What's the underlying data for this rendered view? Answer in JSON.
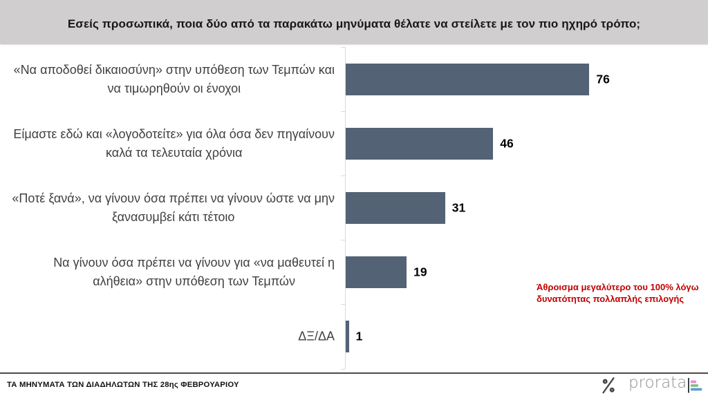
{
  "header": {
    "title": "Εσείς προσωπικά, ποια δύο από τα παρακάτω μηνύματα θέλατε να στείλετε με τον πιο ηχηρό τρόπο;"
  },
  "chart_data": {
    "type": "bar",
    "orientation": "horizontal",
    "title": "Εσείς προσωπικά, ποια δύο από τα παρακάτω μηνύματα θέλατε να στείλετε με τον πιο ηχηρό τρόπο;",
    "categories": [
      "«Να αποδοθεί δικαιοσύνη» στην υπόθεση των Τεμπών και\nνα τιμωρηθούν οι ένοχοι",
      "Είμαστε εδώ και «λογοδοτείτε» για όλα όσα δεν πηγαίνουν\nκαλά τα τελευταία χρόνια",
      "«Ποτέ ξανά», να γίνουν όσα πρέπει να γίνουν ώστε να μην\nξανασυμβεί κάτι τέτοιο",
      "Να γίνουν όσα πρέπει να γίνουν για «να μαθευτεί η\nαλήθεια» στην υπόθεση των Τεμπών",
      "ΔΞ/ΔΑ"
    ],
    "values": [
      76,
      46,
      31,
      19,
      1
    ],
    "xlabel": "",
    "ylabel": "",
    "xlim": [
      0,
      100
    ],
    "grid": false,
    "legend": false,
    "data_labels": true,
    "unit": "%",
    "annotation": "Άθροισμα μεγαλύτερο του 100% λόγω\nδυνατότητας πολλαπλής επιλογής"
  },
  "footer": {
    "source_text": "ΤΑ ΜΗΝΥΜΑΤΑ ΤΩΝ ΔΙΑΔΗΛΩΤΩΝ ΤΗΣ 28ης ΦΕΒΡΟΥΑΡΙΟΥ",
    "brand_wordmark": "prorata"
  },
  "colors": {
    "header_bg": "#d0cece",
    "bar_fill": "#536375",
    "annotation_red": "#c00000",
    "axis_gray": "#d9d9d9",
    "footer_rule": "#4a4a4a",
    "percent_icon_gray": "#474747",
    "logo_line": "#272c33",
    "logo_pink": "#ef8bd1",
    "logo_green": "#7cb880",
    "logo_blue": "#5b9ec9"
  }
}
